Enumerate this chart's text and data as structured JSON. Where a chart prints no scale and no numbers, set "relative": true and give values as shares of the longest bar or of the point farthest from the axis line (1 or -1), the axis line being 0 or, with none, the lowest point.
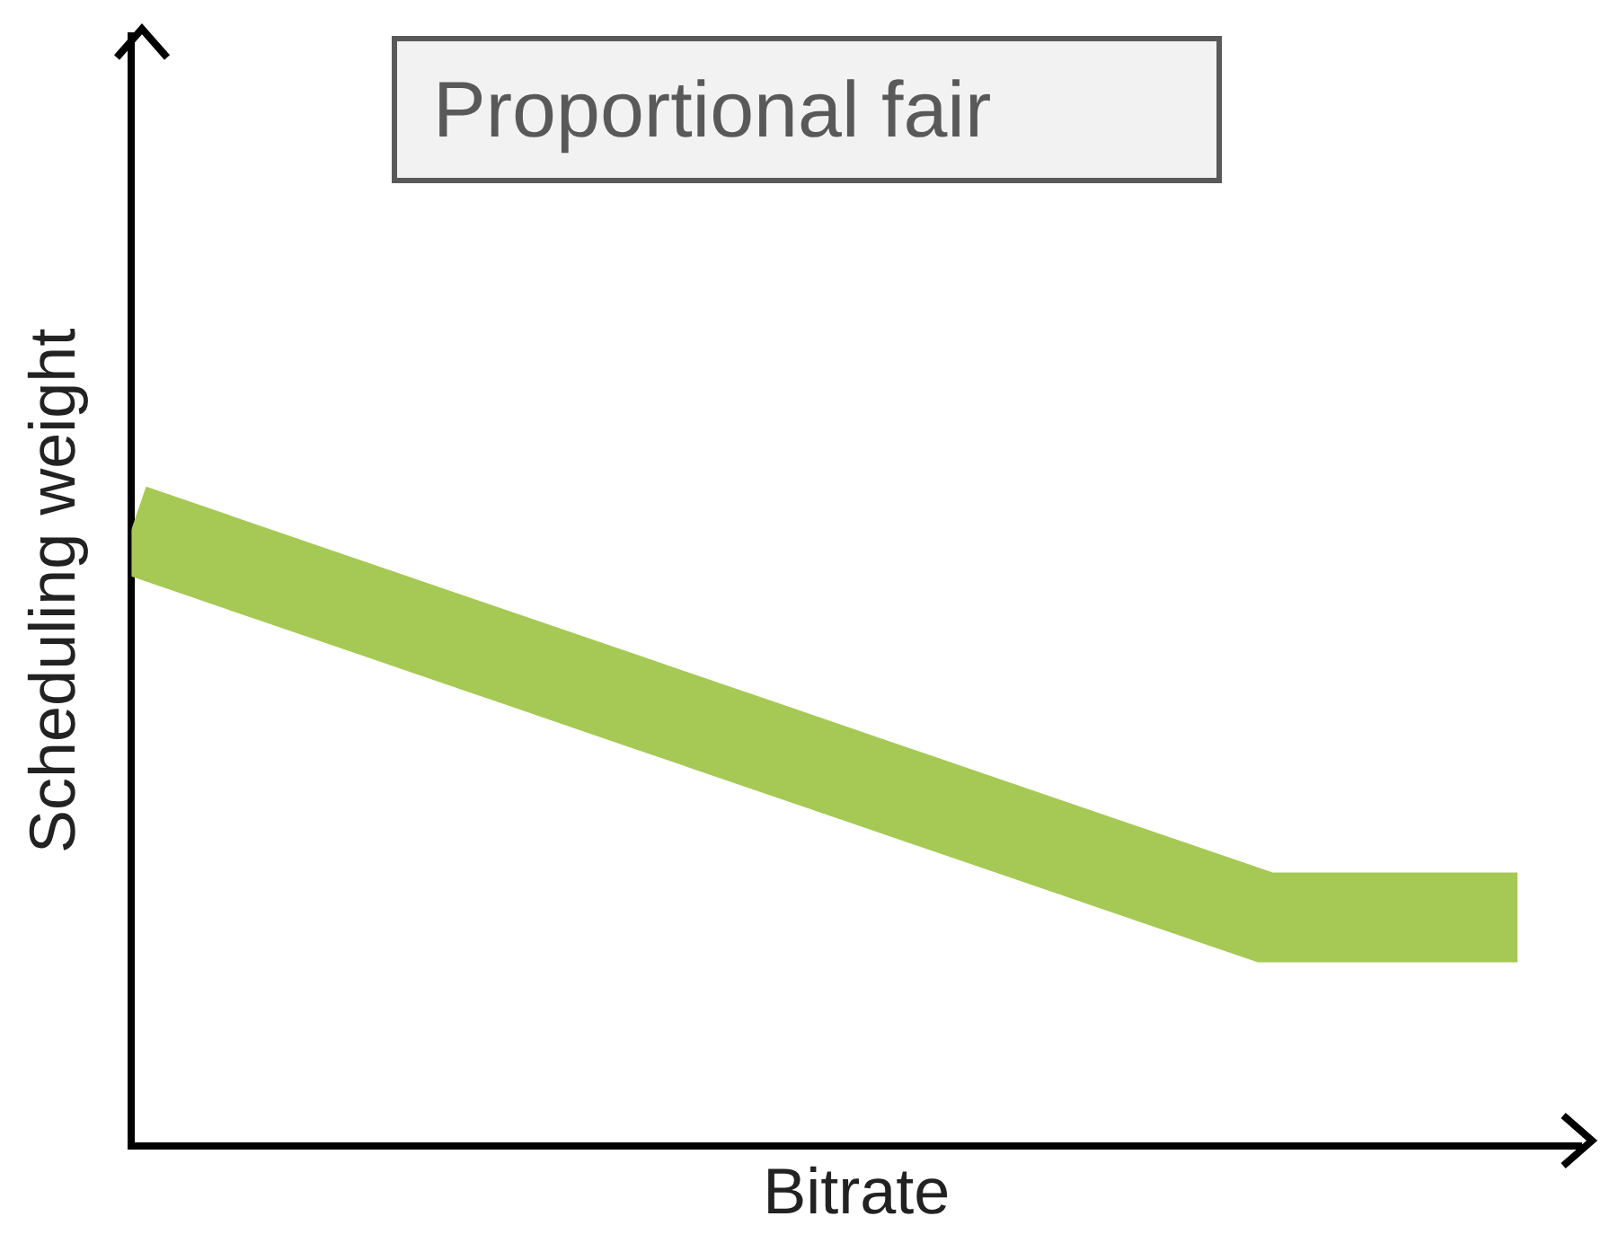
{
  "chart_data": {
    "type": "line",
    "title": "Proportional fair",
    "xlabel": "Bitrate",
    "ylabel": "Scheduling weight",
    "relative": true,
    "legend": false,
    "grid": false,
    "categories": [
      null,
      null,
      null,
      null,
      null,
      null,
      null,
      null,
      null,
      null,
      null,
      null
    ],
    "series": [
      {
        "color": "#a5c954",
        "values": [
          1,
          0.93,
          0.86,
          0.79,
          0.72,
          0.65,
          0.58,
          0.51,
          0.44,
          0.37,
          0.37,
          0.37
        ]
      }
    ]
  }
}
